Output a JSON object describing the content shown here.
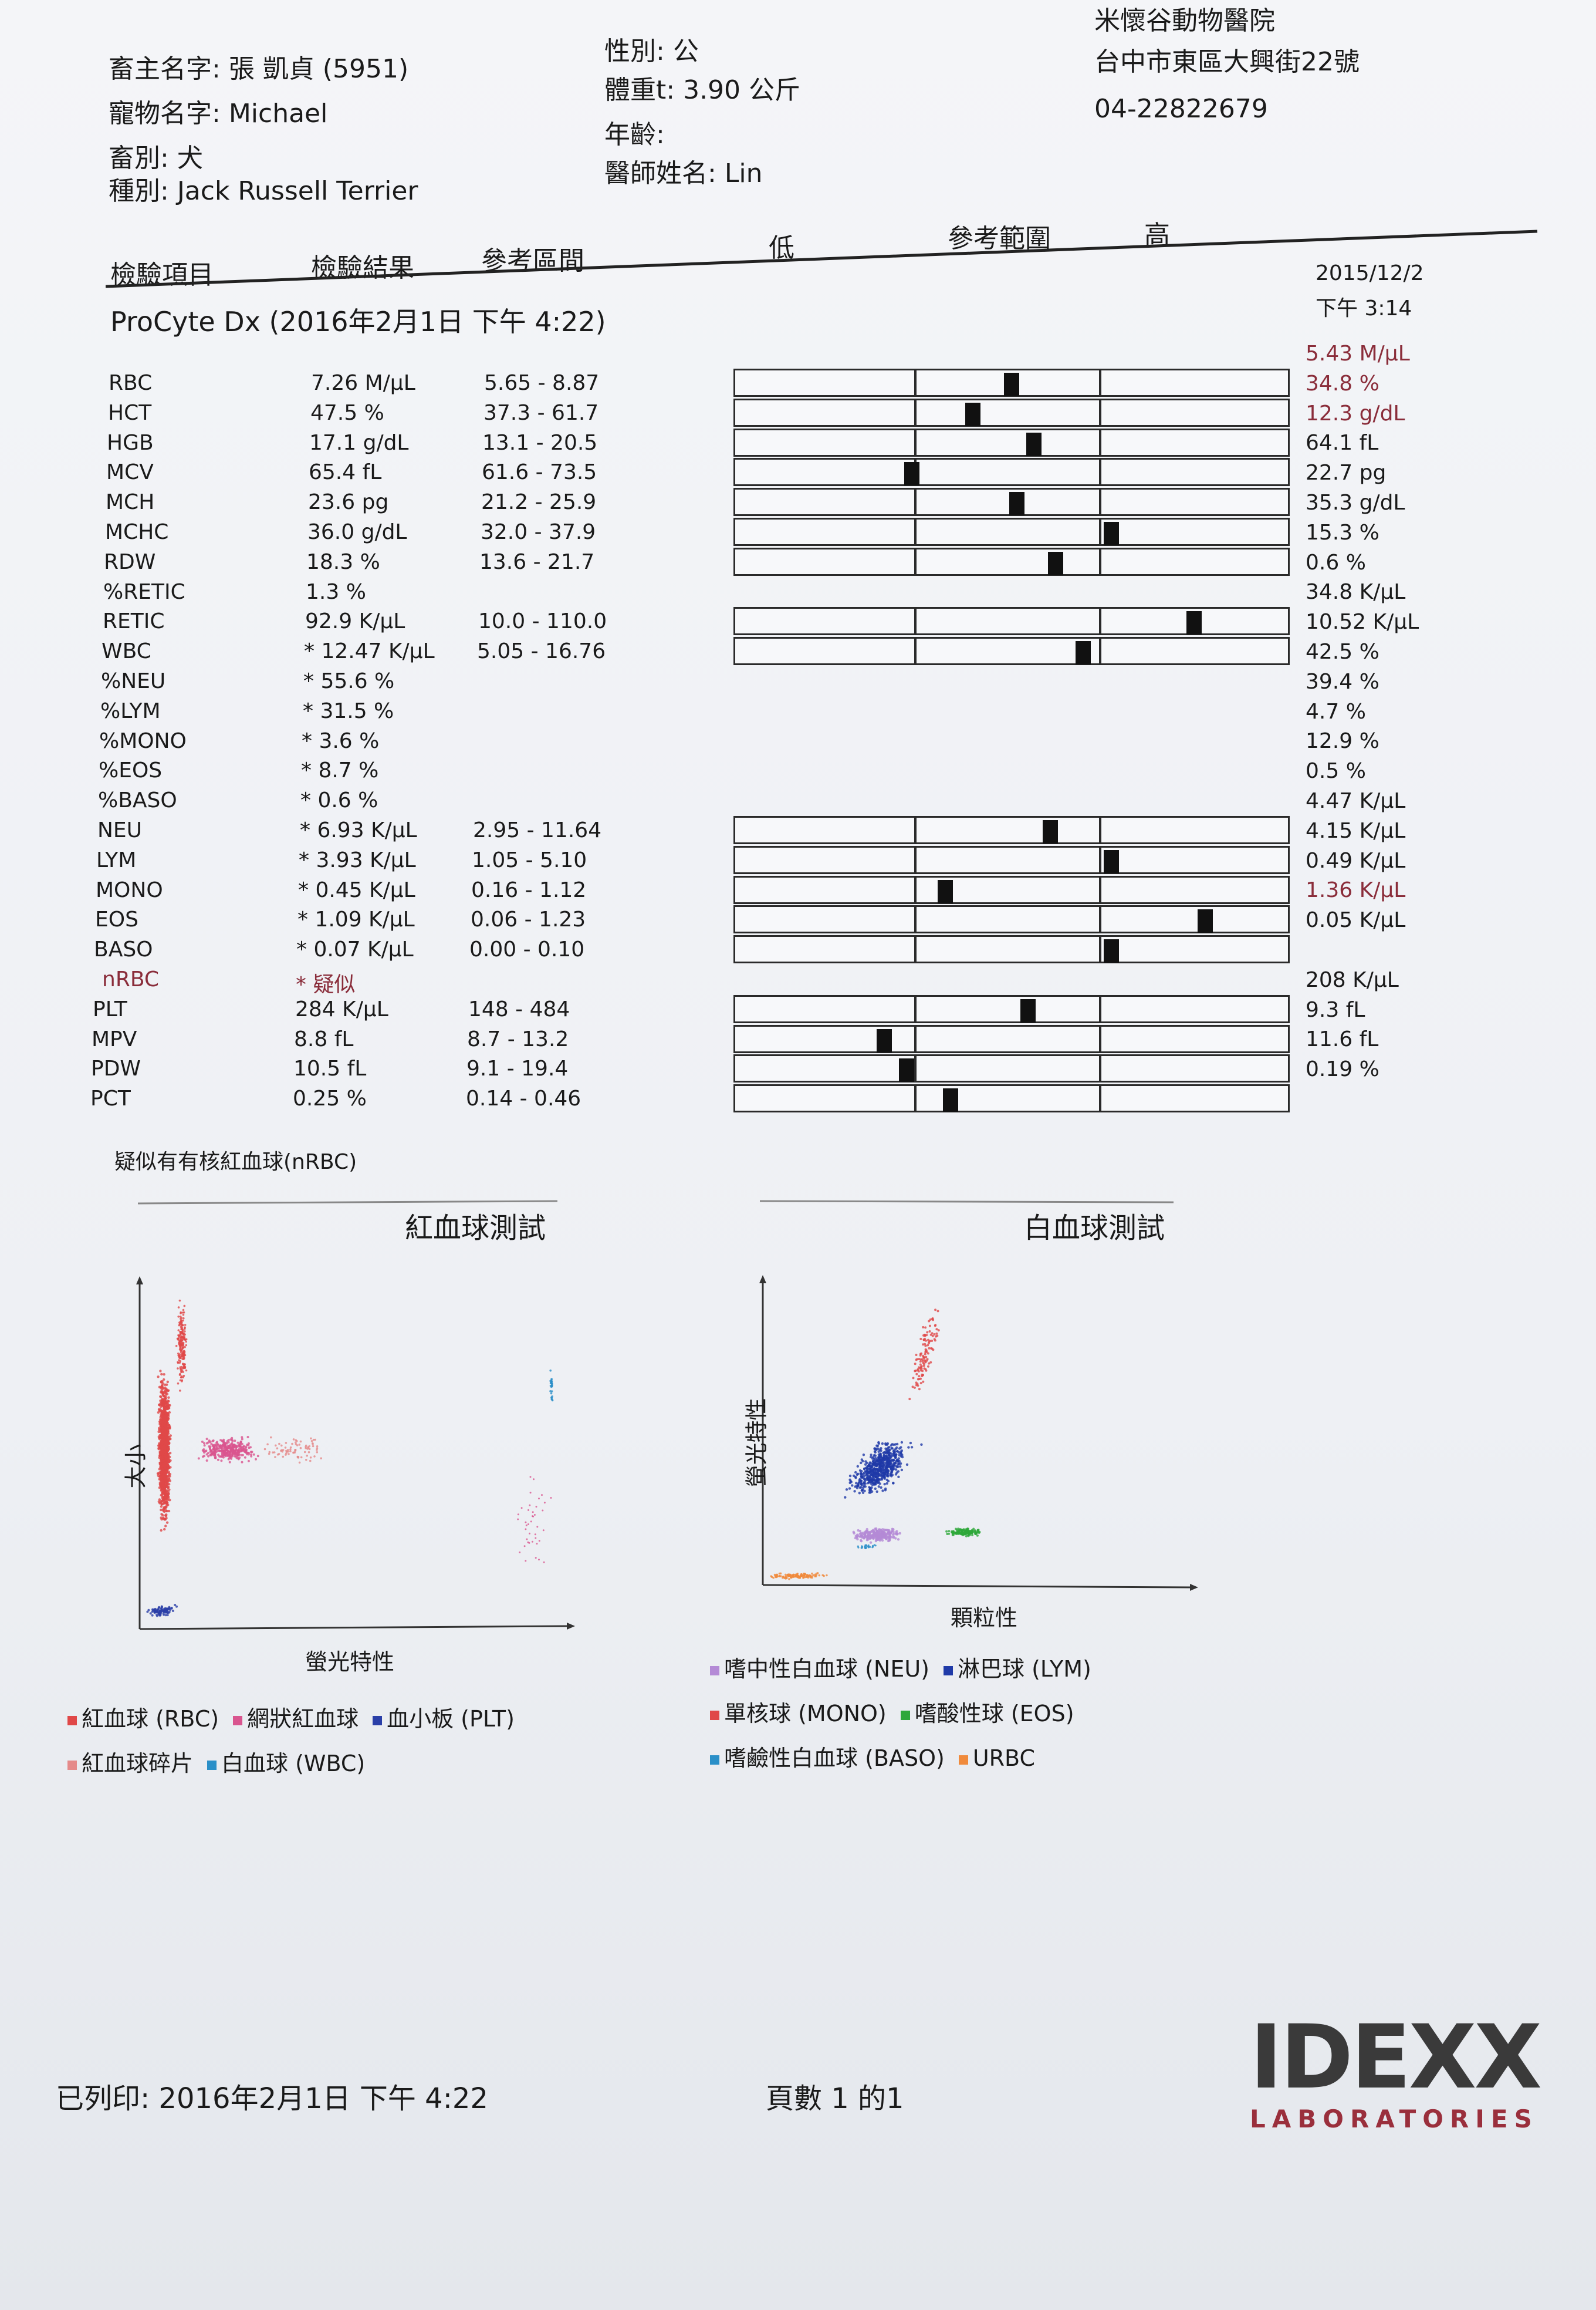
{
  "owner": {
    "label": "畜主名字:",
    "value": "張 凱貞 (5951)"
  },
  "pet": {
    "label": "寵物名字:",
    "value": "Michael"
  },
  "species": {
    "label": "畜別:",
    "value": "犬"
  },
  "breed": {
    "label": "種別:",
    "value": "Jack Russell Terrier"
  },
  "sex": {
    "label": "性別:",
    "value": "公"
  },
  "weight": {
    "label": "體重t:",
    "value": "3.90 公斤"
  },
  "age": {
    "label": "年齡:",
    "value": ""
  },
  "doctor": {
    "label": "醫師姓名:",
    "value": "Lin"
  },
  "clinic": {
    "name": "米懷谷動物醫院",
    "address": "台中市東區大興街22號",
    "phone": "04-22822679"
  },
  "columns": {
    "item": "檢驗項目",
    "result": "檢驗結果",
    "range": "參考區間",
    "low": "低",
    "ref": "參考範圍",
    "high": "高"
  },
  "prev_date": "2015/12/2",
  "prev_time": "下午 3:14",
  "instrument": "ProCyte Dx (2016年2月1日 下午 4:22)",
  "results": [
    {
      "name": "RBC",
      "value": "7.26 M/µL",
      "range": "5.65 - 8.87",
      "prev": "5.43 M/µL",
      "prev_flag": true,
      "bar": 0.5
    },
    {
      "name": "HCT",
      "value": "47.5 %",
      "range": "37.3 - 61.7",
      "prev": "34.8 %",
      "prev_flag": true,
      "bar": 0.43
    },
    {
      "name": "HGB",
      "value": "17.1 g/dL",
      "range": "13.1 - 20.5",
      "prev": "12.3 g/dL",
      "prev_flag": true,
      "bar": 0.54
    },
    {
      "name": "MCV",
      "value": "65.4 fL",
      "range": "61.6 - 73.5",
      "prev": "64.1 fL",
      "prev_flag": false,
      "bar": 0.32
    },
    {
      "name": "MCH",
      "value": "23.6 pg",
      "range": "21.2 - 25.9",
      "prev": "22.7 pg",
      "prev_flag": false,
      "bar": 0.51
    },
    {
      "name": "MCHC",
      "value": "36.0 g/dL",
      "range": "32.0 - 37.9",
      "prev": "35.3 g/dL",
      "prev_flag": false,
      "bar": 0.68
    },
    {
      "name": "RDW",
      "value": "18.3 %",
      "range": "13.6 - 21.7",
      "prev": "15.3 %",
      "prev_flag": false,
      "bar": 0.58
    },
    {
      "name": "%RETIC",
      "value": "1.3 %",
      "range": "",
      "prev": "0.6 %",
      "prev_flag": false,
      "bar": null
    },
    {
      "name": "RETIC",
      "value": "92.9 K/µL",
      "range": "10.0 - 110.0",
      "prev": "34.8 K/µL",
      "prev_flag": false,
      "bar": 0.83
    },
    {
      "name": "WBC",
      "value": "* 12.47 K/µL",
      "range": "5.05 - 16.76",
      "prev": "10.52 K/µL",
      "prev_flag": false,
      "bar": 0.63
    },
    {
      "name": "%NEU",
      "value": "* 55.6 %",
      "range": "",
      "prev": "42.5 %",
      "prev_flag": false,
      "bar": null
    },
    {
      "name": "%LYM",
      "value": "* 31.5 %",
      "range": "",
      "prev": "39.4 %",
      "prev_flag": false,
      "bar": null
    },
    {
      "name": "%MONO",
      "value": "* 3.6 %",
      "range": "",
      "prev": "4.7 %",
      "prev_flag": false,
      "bar": null
    },
    {
      "name": "%EOS",
      "value": "* 8.7 %",
      "range": "",
      "prev": "12.9 %",
      "prev_flag": false,
      "bar": null
    },
    {
      "name": "%BASO",
      "value": "* 0.6 %",
      "range": "",
      "prev": "0.5 %",
      "prev_flag": false,
      "bar": null
    },
    {
      "name": "NEU",
      "value": "* 6.93 K/µL",
      "range": "2.95 - 11.64",
      "prev": "4.47 K/µL",
      "prev_flag": false,
      "bar": 0.57
    },
    {
      "name": "LYM",
      "value": "* 3.93 K/µL",
      "range": "1.05 - 5.10",
      "prev": "4.15 K/µL",
      "prev_flag": false,
      "bar": 0.68
    },
    {
      "name": "MONO",
      "value": "* 0.45 K/µL",
      "range": "0.16 - 1.12",
      "prev": "0.49 K/µL",
      "prev_flag": false,
      "bar": 0.38
    },
    {
      "name": "EOS",
      "value": "* 1.09 K/µL",
      "range": "0.06 - 1.23",
      "prev": "1.36 K/µL",
      "prev_flag": true,
      "bar": 0.85
    },
    {
      "name": "BASO",
      "value": "* 0.07 K/µL",
      "range": "0.00 - 0.10",
      "prev": "0.05 K/µL",
      "prev_flag": false,
      "bar": 0.68
    },
    {
      "name": "nRBC",
      "value": "* 疑似",
      "range": "",
      "prev": "",
      "prev_flag": false,
      "bar": null,
      "flag": true
    },
    {
      "name": "PLT",
      "value": "284 K/µL",
      "range": "148 - 484",
      "prev": "208 K/µL",
      "prev_flag": false,
      "bar": 0.53
    },
    {
      "name": "MPV",
      "value": "8.8 fL",
      "range": "8.7 - 13.2",
      "prev": "9.3 fL",
      "prev_flag": false,
      "bar": 0.27
    },
    {
      "name": "PDW",
      "value": "10.5 fL",
      "range": "9.1 - 19.4",
      "prev": "11.6 fL",
      "prev_flag": false,
      "bar": 0.31
    },
    {
      "name": "PCT",
      "value": "0.25 %",
      "range": "0.14 - 0.46",
      "prev": "0.19 %",
      "prev_flag": false,
      "bar": 0.39
    }
  ],
  "note": "疑似有有核紅血球(nRBC)",
  "rbc_chart": {
    "title": "紅血球測試",
    "xlabel": "螢光特性",
    "ylabel": "大小",
    "legend": [
      {
        "label": "紅血球 (RBC)",
        "color": "#e04848"
      },
      {
        "label": "網狀紅血球",
        "color": "#d9558f"
      },
      {
        "label": "血小板 (PLT)",
        "color": "#2a3fa8"
      },
      {
        "label": "紅血球碎片",
        "color": "#e58a8a"
      },
      {
        "label": "白血球 (WBC)",
        "color": "#2a8fc8"
      }
    ]
  },
  "wbc_chart": {
    "title": "白血球測試",
    "xlabel": "顆粒性",
    "ylabel": "螢光特性",
    "legend": [
      {
        "label": "嗜中性白血球 (NEU)",
        "color": "#b48ad6"
      },
      {
        "label": "淋巴球 (LYM)",
        "color": "#1f3aa8"
      },
      {
        "label": "單核球 (MONO)",
        "color": "#e04848"
      },
      {
        "label": "嗜酸性球 (EOS)",
        "color": "#2ea83a"
      },
      {
        "label": "嗜鹼性白血球 (BASO)",
        "color": "#2a8fc8"
      },
      {
        "label": "URBC",
        "color": "#f08a3c"
      }
    ]
  },
  "footer": {
    "printed": "已列印: 2016年2月1日 下午 4:22",
    "page": "頁數 1 的1"
  },
  "logo": {
    "main": "IDEXX",
    "sub": "LABORATORIES"
  }
}
